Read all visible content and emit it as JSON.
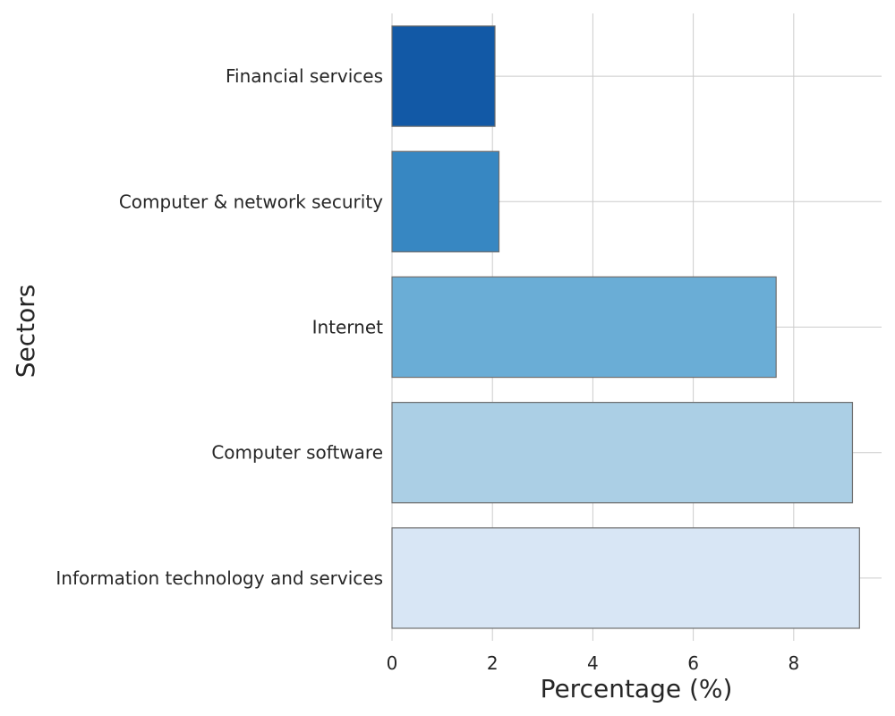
{
  "chart_data": {
    "type": "bar",
    "orientation": "horizontal",
    "categories": [
      "Financial services",
      "Computer & network security",
      "Internet",
      "Computer software",
      "Information technology and services"
    ],
    "values": [
      2.05,
      2.13,
      7.65,
      9.17,
      9.31
    ],
    "colors": [
      "#1259a6",
      "#3787c2",
      "#6aadd6",
      "#abcfe5",
      "#d8e6f5"
    ],
    "xlabel": "Percentage (%)",
    "ylabel": "Sectors",
    "xlim": [
      0,
      9.75
    ],
    "xticks": [
      "0",
      "2",
      "4",
      "6",
      "8"
    ],
    "grid": true
  }
}
